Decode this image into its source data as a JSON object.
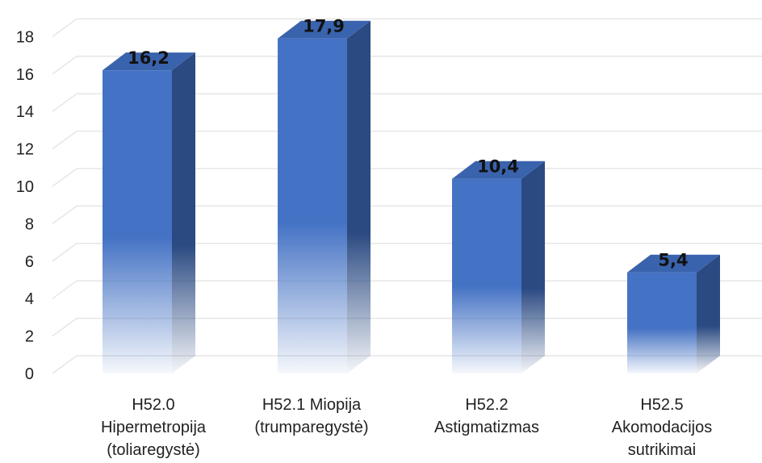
{
  "chart_data": {
    "type": "bar",
    "title": "",
    "xlabel": "",
    "ylabel": "",
    "ylim": [
      0,
      18
    ],
    "yticks": [
      0,
      2,
      4,
      6,
      8,
      10,
      12,
      14,
      16,
      18
    ],
    "categories": [
      [
        "H52.0",
        "Hipermetropija",
        "(toliaregystė)"
      ],
      [
        "H52.1 Miopija",
        "(trumparegystė)"
      ],
      [
        "H52.2",
        "Astigmatizmas"
      ],
      [
        "H52.5",
        "Akomodacijos",
        "sutrikimai"
      ]
    ],
    "values": [
      16.2,
      17.9,
      10.4,
      5.4
    ],
    "data_labels": [
      "16,2",
      "17,9",
      "10,4",
      "5,4"
    ],
    "grid": true,
    "legend": "none",
    "colors": {
      "front": "#4472c4",
      "side": "#2b4a82",
      "top": "#3a63ad",
      "grid": "#e6e6e6"
    }
  }
}
